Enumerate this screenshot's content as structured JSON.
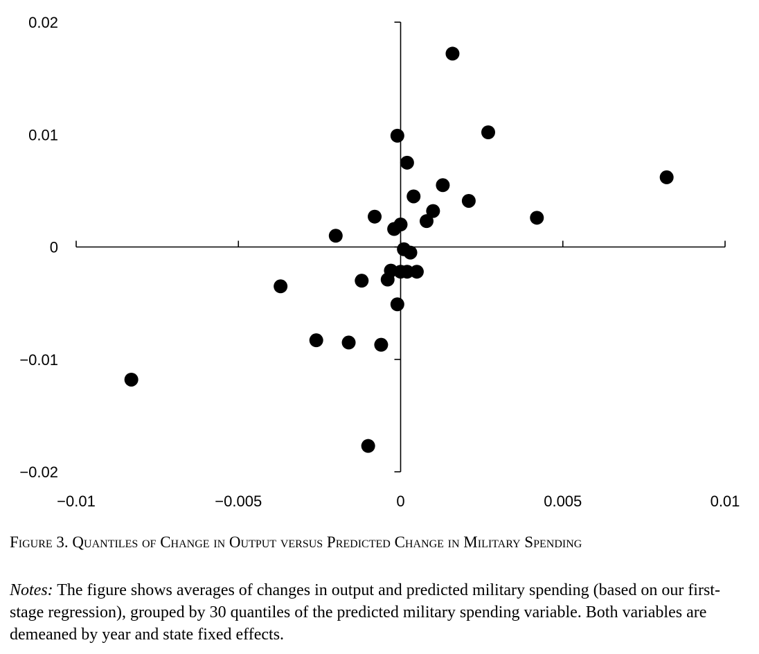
{
  "chart_data": {
    "type": "scatter",
    "title": "",
    "xlabel": "",
    "ylabel": "",
    "xlim": [
      -0.01,
      0.01
    ],
    "ylim": [
      -0.02,
      0.02
    ],
    "x_ticks": [
      -0.01,
      -0.005,
      0,
      0.005,
      0.01
    ],
    "x_tick_labels": [
      "−0.01",
      "−0.005",
      "0",
      "0.005",
      "0.01"
    ],
    "y_ticks": [
      -0.02,
      -0.01,
      0,
      0.01,
      0.02
    ],
    "y_tick_labels": [
      "−0.02",
      "−0.01",
      "0",
      "0.01",
      "0.02"
    ],
    "grid": false,
    "marker_color": "#000000",
    "points": [
      {
        "x": 0.0016,
        "y": 0.0172
      },
      {
        "x": 0.0027,
        "y": 0.0102
      },
      {
        "x": -0.0001,
        "y": 0.0099
      },
      {
        "x": 0.0002,
        "y": 0.0075
      },
      {
        "x": 0.0082,
        "y": 0.0062
      },
      {
        "x": 0.0013,
        "y": 0.0055
      },
      {
        "x": 0.0004,
        "y": 0.0045
      },
      {
        "x": 0.0021,
        "y": 0.0041
      },
      {
        "x": 0.001,
        "y": 0.0032
      },
      {
        "x": -0.0008,
        "y": 0.0027
      },
      {
        "x": 0.0042,
        "y": 0.0026
      },
      {
        "x": 0.0008,
        "y": 0.0023
      },
      {
        "x": 0.0,
        "y": 0.002
      },
      {
        "x": -0.0002,
        "y": 0.0016
      },
      {
        "x": -0.002,
        "y": 0.001
      },
      {
        "x": 0.0001,
        "y": -0.0002
      },
      {
        "x": 0.0003,
        "y": -0.0005
      },
      {
        "x": -0.0003,
        "y": -0.0021
      },
      {
        "x": 0.0,
        "y": -0.0022
      },
      {
        "x": 0.0002,
        "y": -0.0022
      },
      {
        "x": 0.0005,
        "y": -0.0022
      },
      {
        "x": -0.0004,
        "y": -0.0029
      },
      {
        "x": -0.0012,
        "y": -0.003
      },
      {
        "x": -0.0037,
        "y": -0.0035
      },
      {
        "x": -0.0001,
        "y": -0.0051
      },
      {
        "x": -0.0026,
        "y": -0.0083
      },
      {
        "x": -0.0016,
        "y": -0.0085
      },
      {
        "x": -0.0006,
        "y": -0.0087
      },
      {
        "x": -0.0083,
        "y": -0.0118
      },
      {
        "x": -0.001,
        "y": -0.0177
      }
    ]
  },
  "caption": "Figure 3. Quantiles of Change in Output versus Predicted Change in Military Spending",
  "notes": {
    "label": "Notes:",
    "text": " The figure shows averages of changes in output and predicted military spending (based on our first-stage regression), grouped by 30 quantiles of the predicted military spending variable. Both variables are demeaned by year and state fixed effects."
  }
}
